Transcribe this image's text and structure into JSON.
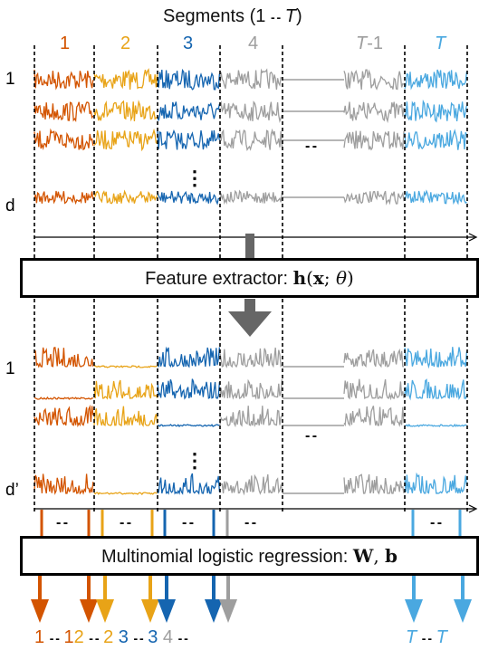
{
  "title": {
    "prefix": "Segments (1",
    "dots": "- -",
    "var": "T",
    "suffix": ")"
  },
  "colors": {
    "seg1": "#d35400",
    "seg2": "#e8a317",
    "seg3": "#1565b0",
    "seg4": "#9e9e9e",
    "segT": "#4aa8e0",
    "box_border": "#000000",
    "arrow_gray": "#666666"
  },
  "segment_labels": [
    {
      "text": "1",
      "color": "#d35400"
    },
    {
      "text": "2",
      "color": "#e8a317"
    },
    {
      "text": "3",
      "color": "#1565b0"
    },
    {
      "text": "4",
      "color": "#9e9e9e"
    },
    {
      "text_var": "T",
      "text_suffix": "-1",
      "color": "#9e9e9e"
    },
    {
      "text_var": "T",
      "text_suffix": "",
      "color": "#4aa8e0"
    }
  ],
  "top_rows": {
    "first": "1",
    "vdots": "⋮",
    "last": "d"
  },
  "bottom_rows": {
    "first": "1",
    "vdots": "⋮",
    "last": "d’"
  },
  "gap_dots": "- -",
  "feature_extractor": {
    "label": "Feature extractor: ",
    "func": "h",
    "args_open": "(",
    "x": "x",
    "sep": "; ",
    "theta": "θ",
    "args_close": ")"
  },
  "mlr": {
    "label": "Multinomial logistic regression: ",
    "W": "W",
    "sep": ", ",
    "b": "b"
  },
  "output_labels": [
    {
      "text": "1",
      "color": "#d35400"
    },
    {
      "text": "- -",
      "color": "#000000"
    },
    {
      "text": "1",
      "color": "#d35400"
    },
    {
      "text": "2",
      "color": "#e8a317"
    },
    {
      "text": "- -",
      "color": "#000000"
    },
    {
      "text": "2",
      "color": "#e8a317"
    },
    {
      "text": "3",
      "color": "#1565b0"
    },
    {
      "text": "- -",
      "color": "#000000"
    },
    {
      "text": "3",
      "color": "#1565b0"
    },
    {
      "text": "4",
      "color": "#9e9e9e"
    },
    {
      "text": "- -",
      "color": "#000000"
    },
    {
      "text": "T",
      "color": "#4aa8e0"
    },
    {
      "text": "- -",
      "color": "#000000"
    },
    {
      "text": "T",
      "color": "#4aa8e0"
    }
  ]
}
